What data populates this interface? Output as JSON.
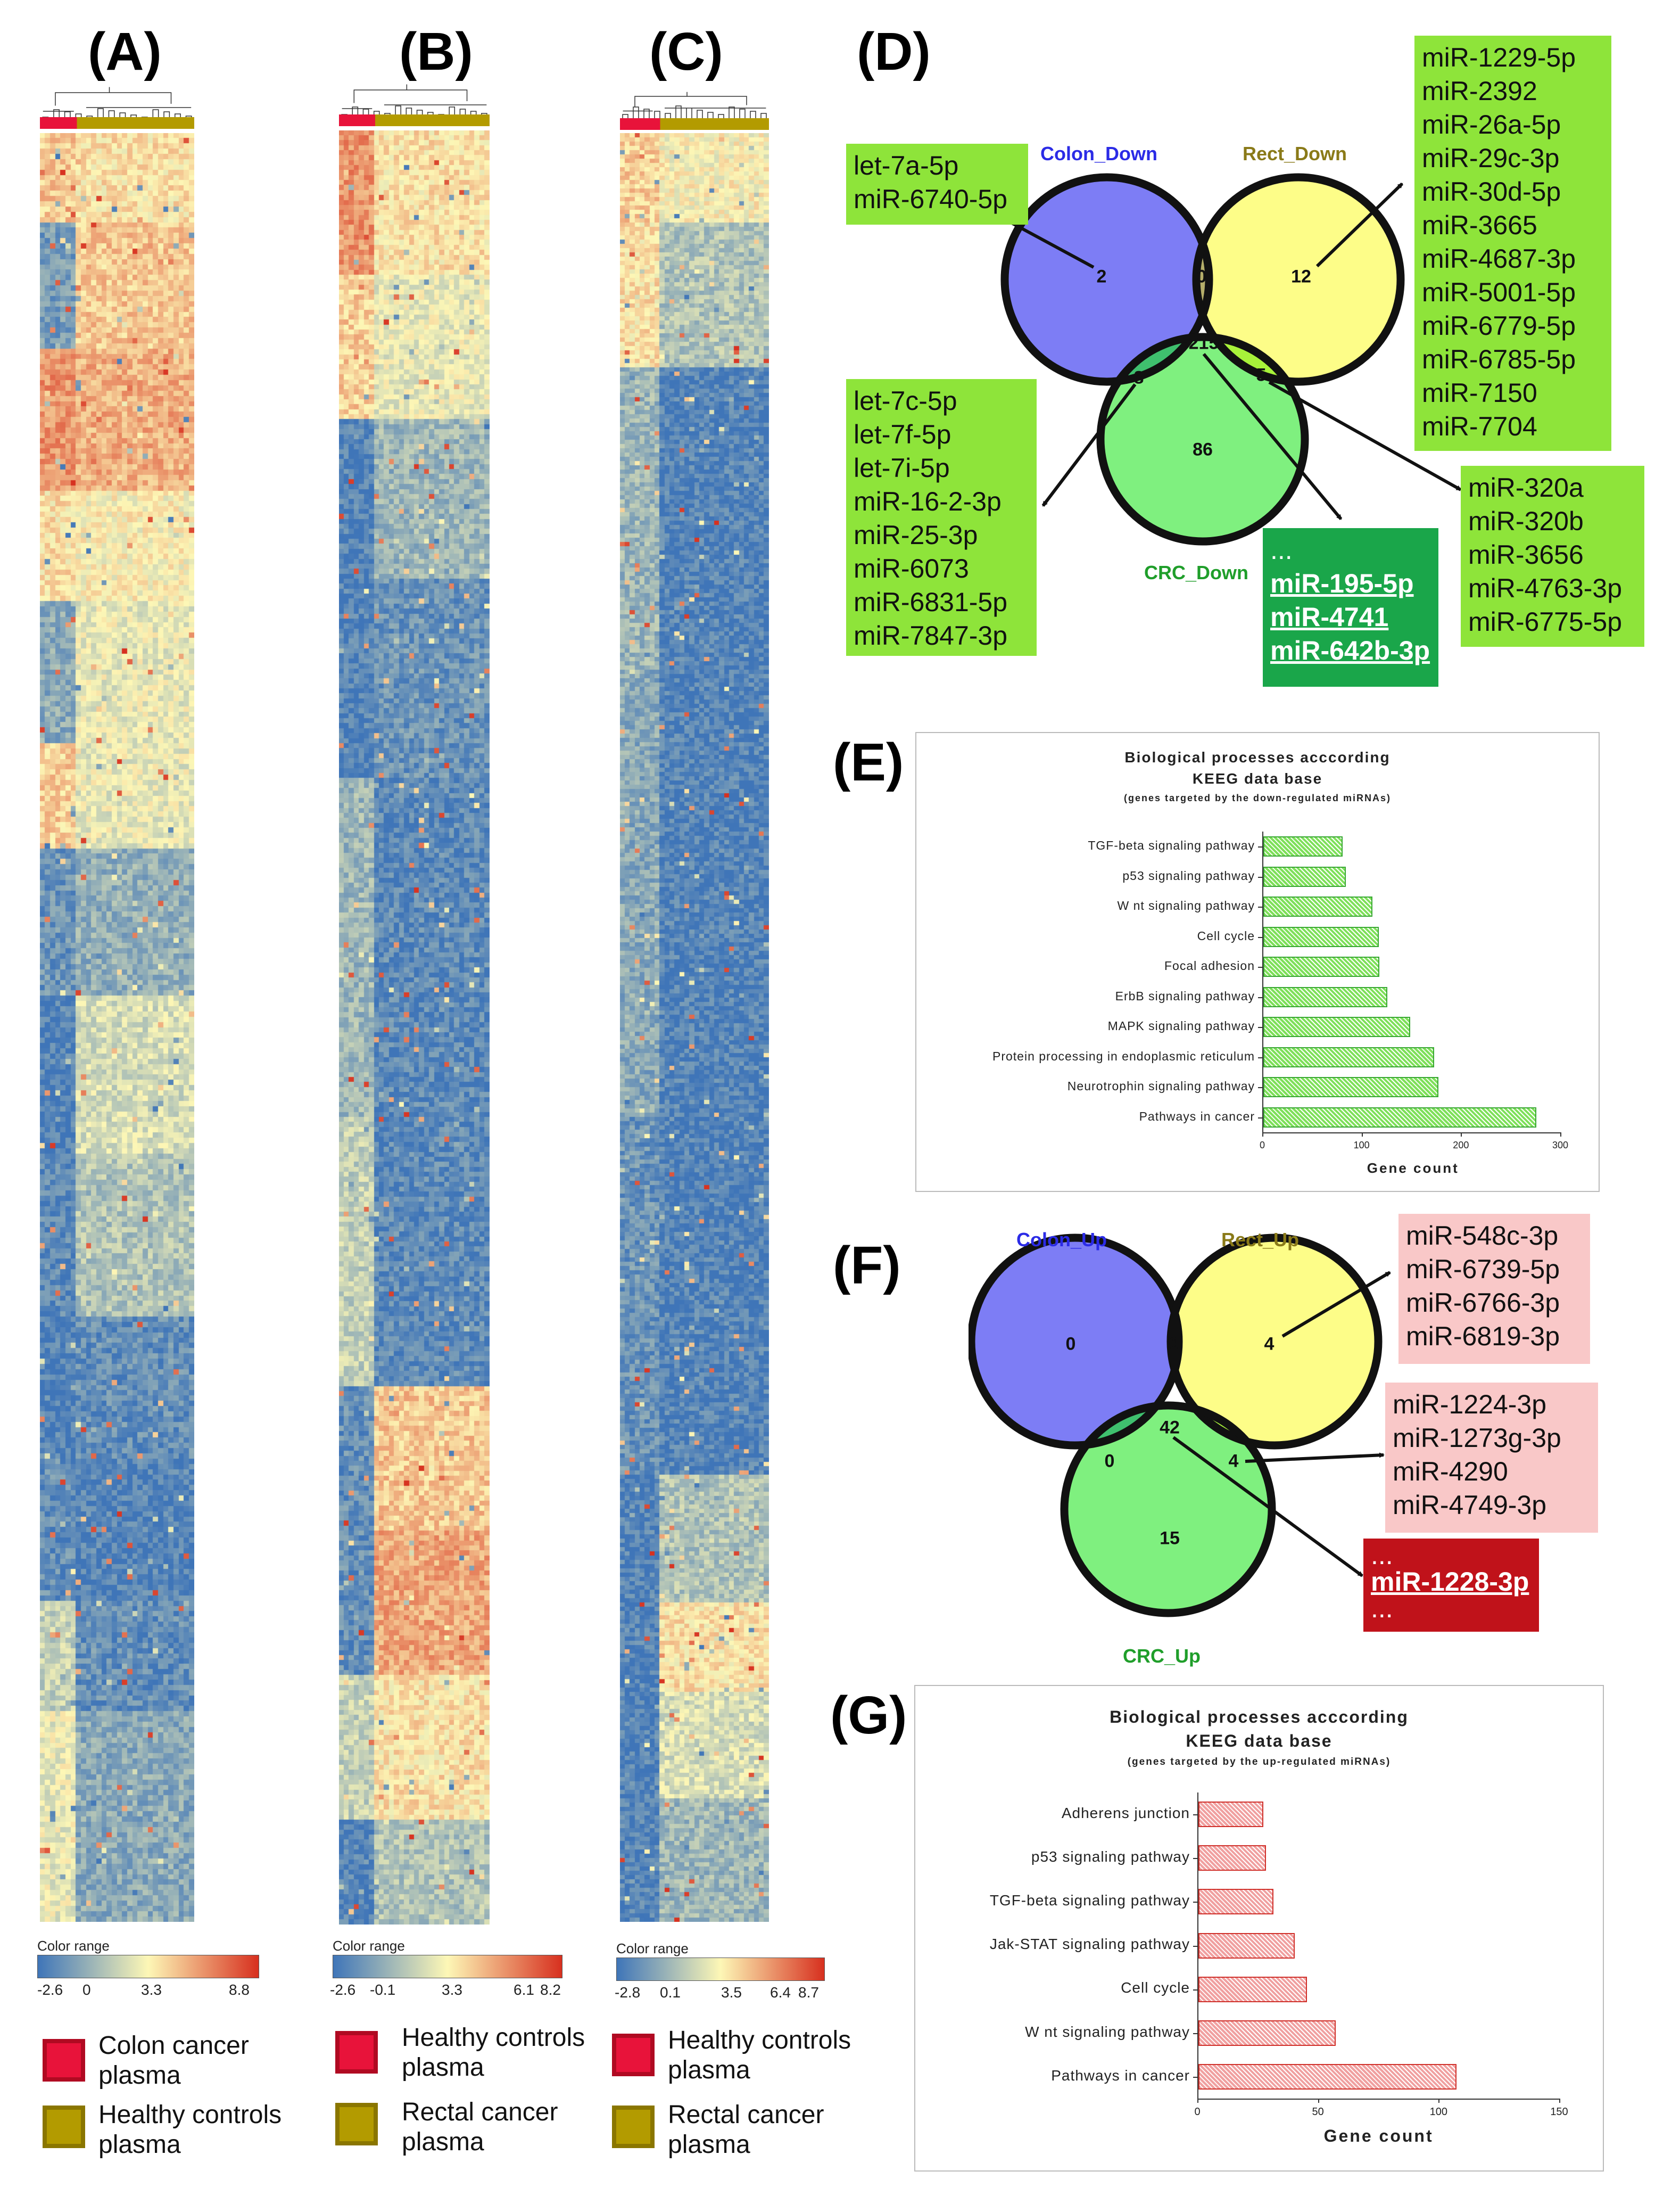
{
  "panels": {
    "A": "(A)",
    "B": "(B)",
    "C": "(C)",
    "D": "(D)",
    "E": "(E)",
    "F": "(F)",
    "G": "(G)"
  },
  "colors": {
    "red_group": "#e8133a",
    "olive_group": "#b39b00",
    "heat_low": "#3f75b8",
    "heat_mid": "#fdf7b6",
    "heat_high": "#d7301f",
    "venn_colon": "#7d7df5",
    "venn_rect": "#fdfd88",
    "venn_crc": "#7ff07f",
    "box_green": "#8ee43a",
    "box_dark_green": "#1aa64a",
    "box_pink": "#f9c8c8",
    "box_dark_red": "#c0121a",
    "bar_green": "#7ee05a",
    "bar_red": "#f0a0a0"
  },
  "heatmap_A": {
    "color_range_title": "Color range",
    "ticks": [
      "-2.6",
      "0",
      "3.3",
      "8.8"
    ],
    "legend": [
      {
        "label": "Colon cancer plasma",
        "color": "#e8133a"
      },
      {
        "label": "Healthy controls plasma",
        "color": "#b39b00"
      }
    ]
  },
  "heatmap_B": {
    "color_range_title": "Color range",
    "ticks": [
      "-2.6",
      "-0.1",
      "3.3",
      "6.1",
      "8.2"
    ],
    "legend": [
      {
        "label": "Healthy controls plasma",
        "color": "#e8133a"
      },
      {
        "label": "Rectal cancer plasma",
        "color": "#b39b00"
      }
    ]
  },
  "heatmap_C": {
    "color_range_title": "Color range",
    "ticks": [
      "-2.8",
      "0.1",
      "3.5",
      "6.4",
      "8.7"
    ],
    "legend": [
      {
        "label": "Healthy controls plasma",
        "color": "#e8133a"
      },
      {
        "label": "Rectal cancer plasma",
        "color": "#b39b00"
      }
    ]
  },
  "venn_down": {
    "labels": {
      "colon": "Colon_Down",
      "rect": "Rect_Down",
      "crc": "CRC_Down"
    },
    "counts": {
      "colon_only": "2",
      "colon_rect": "0",
      "rect_only": "12",
      "all": "215",
      "colon_crc": "8",
      "rect_crc": "5",
      "crc_only": "86"
    },
    "box_colon_only": [
      "let-7a-5p",
      "miR-6740-5p"
    ],
    "box_rect_only": [
      "miR-1229-5p",
      "miR-2392",
      "miR-26a-5p",
      "miR-29c-3p",
      "miR-30d-5p",
      "miR-3665",
      "miR-4687-3p",
      "miR-5001-5p",
      "miR-6779-5p",
      "miR-6785-5p",
      "miR-7150",
      "miR-7704"
    ],
    "box_colon_crc": [
      "let-7c-5p",
      "let-7f-5p",
      "let-7i-5p",
      "miR-16-2-3p",
      "miR-25-3p",
      "miR-6073",
      "miR-6831-5p",
      "miR-7847-3p"
    ],
    "box_rect_crc": [
      "miR-320a",
      "miR-320b",
      "miR-3656",
      "miR-4763-3p",
      "miR-6775-5p"
    ],
    "box_all": {
      "ellipsis": "...",
      "items": [
        "miR-195-5p",
        "miR-4741",
        "miR-642b-3p"
      ]
    }
  },
  "venn_up": {
    "labels": {
      "colon": "Colon_Up",
      "rect": "Rect_Up",
      "crc": "CRC_Up"
    },
    "counts": {
      "colon_only": "0",
      "colon_rect": "0",
      "rect_only": "4",
      "all": "42",
      "colon_crc": "0",
      "rect_crc": "4",
      "crc_only": "15"
    },
    "box_rect_only": [
      "miR-548c-3p",
      "miR-6739-5p",
      "miR-6766-3p",
      "miR-6819-3p"
    ],
    "box_rect_crc": [
      "miR-1224-3p",
      "miR-1273g-3p",
      "miR-4290",
      "miR-4749-3p"
    ],
    "box_all": {
      "ellipsis": "...",
      "items": [
        "miR-1228-3p"
      ]
    }
  },
  "chart_data": [
    {
      "type": "bar",
      "orientation": "horizontal",
      "title": "Biological processes acccording",
      "subtitle": "KEEG data base",
      "note": "(genes targeted by the down-regulated miRNAs)",
      "xlabel": "Gene count",
      "categories": [
        "TGF-beta signaling pathway",
        "p53 signaling pathway",
        "W nt signaling pathway",
        "Cell cycle",
        "Focal adhesion",
        "ErbB signaling pathway",
        "MAPK signaling pathway",
        "Protein processing in endoplasmic reticulum",
        "Neurotrophin signaling pathway",
        "Pathways in cancer"
      ],
      "values": [
        80,
        83,
        110,
        116,
        117,
        125,
        148,
        172,
        176,
        275
      ],
      "xlim": [
        0,
        300
      ],
      "xticks": [
        "0",
        "100",
        "200",
        "300"
      ],
      "color": "#7ee05a"
    },
    {
      "type": "bar",
      "orientation": "horizontal",
      "title": "Biological processes acccording",
      "subtitle": "KEEG data base",
      "note": "(genes targeted by the up-regulated miRNAs)",
      "xlabel": "Gene count",
      "categories": [
        "Adherens junction",
        "p53 signaling pathway",
        "TGF-beta signaling pathway",
        "Jak-STAT signaling pathway",
        "Cell cycle",
        "W nt signaling pathway",
        "Pathways in cancer"
      ],
      "values": [
        27,
        28,
        31,
        40,
        45,
        57,
        107
      ],
      "xlim": [
        0,
        150
      ],
      "xticks": [
        "0",
        "50",
        "100",
        "150"
      ],
      "color": "#f0a0a0"
    }
  ]
}
